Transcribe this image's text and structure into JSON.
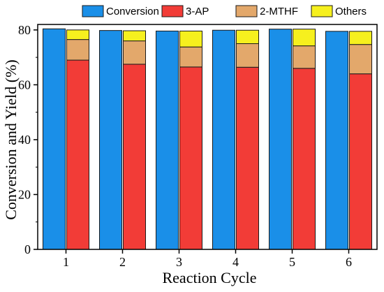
{
  "chart_data": {
    "type": "bar",
    "xlabel": "Reaction Cycle",
    "ylabel": "Conversion and Yield (%)",
    "ylim": [
      0,
      82
    ],
    "yticks": [
      0,
      20,
      40,
      60,
      80
    ],
    "categories": [
      "1",
      "2",
      "3",
      "4",
      "5",
      "6"
    ],
    "legend_position": "top",
    "grid": false,
    "series": [
      {
        "name": "Conversion",
        "color": "#1a8fe8",
        "stack": "conversion",
        "values": [
          80.4,
          79.8,
          79.6,
          79.9,
          80.3,
          79.5
        ]
      },
      {
        "name": "3-AP",
        "color": "#f23c37",
        "stack": "yield",
        "values": [
          69.0,
          67.5,
          66.5,
          66.4,
          66.0,
          64.0
        ]
      },
      {
        "name": "2-MTHF",
        "color": "#e3a86b",
        "stack": "yield",
        "values": [
          7.5,
          8.5,
          7.3,
          8.6,
          8.2,
          10.7
        ]
      },
      {
        "name": "Others",
        "color": "#f6f01e",
        "stack": "yield",
        "values": [
          3.5,
          3.7,
          5.8,
          4.9,
          6.1,
          4.8
        ]
      }
    ]
  }
}
